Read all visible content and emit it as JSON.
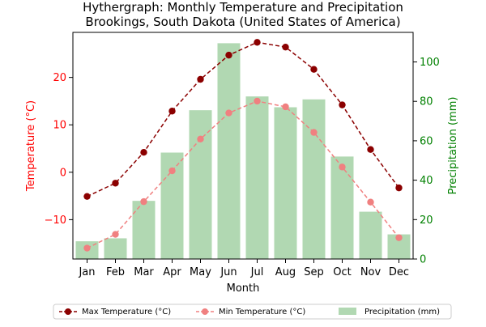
{
  "chart_data": {
    "type": "bar+line",
    "title": "Hythergraph: Monthly Temperature and Precipitation",
    "subtitle": "Brookings, South Dakota (United States of America)",
    "xlabel": "Month",
    "ylabel_left": "Temperature (°C)",
    "ylabel_right": "Precipitation (mm)",
    "categories": [
      "Jan",
      "Feb",
      "Mar",
      "Apr",
      "May",
      "Jun",
      "Jul",
      "Aug",
      "Sep",
      "Oct",
      "Nov",
      "Dec"
    ],
    "ylim_left": [
      -18.3,
      29.5
    ],
    "ylim_right": [
      0,
      115
    ],
    "yticks_left": [
      -10,
      0,
      10,
      20
    ],
    "yticks_right": [
      0,
      20,
      40,
      60,
      80,
      100
    ],
    "grid": false,
    "legend_position": "bottom-center",
    "series": [
      {
        "name": "Max Temperature (°C)",
        "kind": "line",
        "axis": "left",
        "color": "#8b0000",
        "values": [
          -5.1,
          -2.3,
          4.2,
          12.9,
          19.6,
          24.7,
          27.4,
          26.4,
          21.7,
          14.2,
          4.8,
          -3.3
        ]
      },
      {
        "name": "Min Temperature (°C)",
        "kind": "line",
        "axis": "left",
        "color": "#f08080",
        "values": [
          -16.0,
          -13.1,
          -6.2,
          0.3,
          7.0,
          12.5,
          15.0,
          13.8,
          8.4,
          1.1,
          -6.3,
          -13.8
        ]
      },
      {
        "name": "Precipitation (mm)",
        "kind": "bar",
        "axis": "right",
        "color": "#b1d8b2",
        "values": [
          9,
          10.5,
          29.5,
          54,
          75.5,
          109.5,
          82.5,
          77,
          81,
          52,
          24,
          12.5
        ]
      }
    ],
    "colors": {
      "left_axis": "#ff0000",
      "right_axis": "#008000"
    }
  }
}
